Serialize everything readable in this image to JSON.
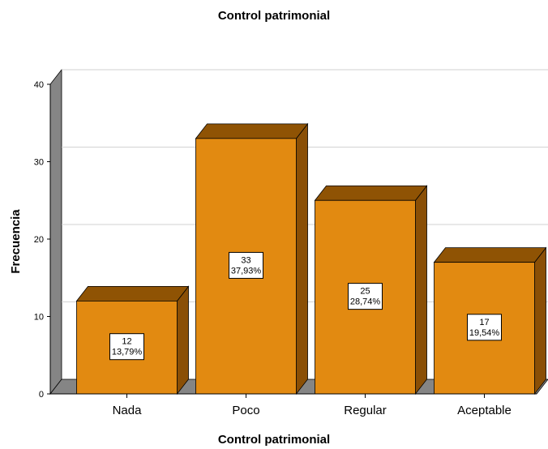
{
  "chart_data": {
    "type": "bar",
    "title": "Control patrimonial",
    "xlabel": "Control patrimonial",
    "ylabel": "Frecuencia",
    "categories": [
      "Nada",
      "Poco",
      "Regular",
      "Aceptable"
    ],
    "values": [
      12,
      33,
      25,
      17
    ],
    "percent_labels": [
      "13,79%",
      "37,93%",
      "28,74%",
      "19,54%"
    ],
    "ylim": [
      0,
      40
    ],
    "yticks": [
      0,
      10,
      20,
      30,
      40
    ],
    "grid": true,
    "style": "3d",
    "colors": {
      "bar_front": "#e28a11",
      "bar_top": "#8f5304",
      "bar_side": "#8a4f06",
      "wall": "#858585",
      "floor": "#858585"
    }
  }
}
